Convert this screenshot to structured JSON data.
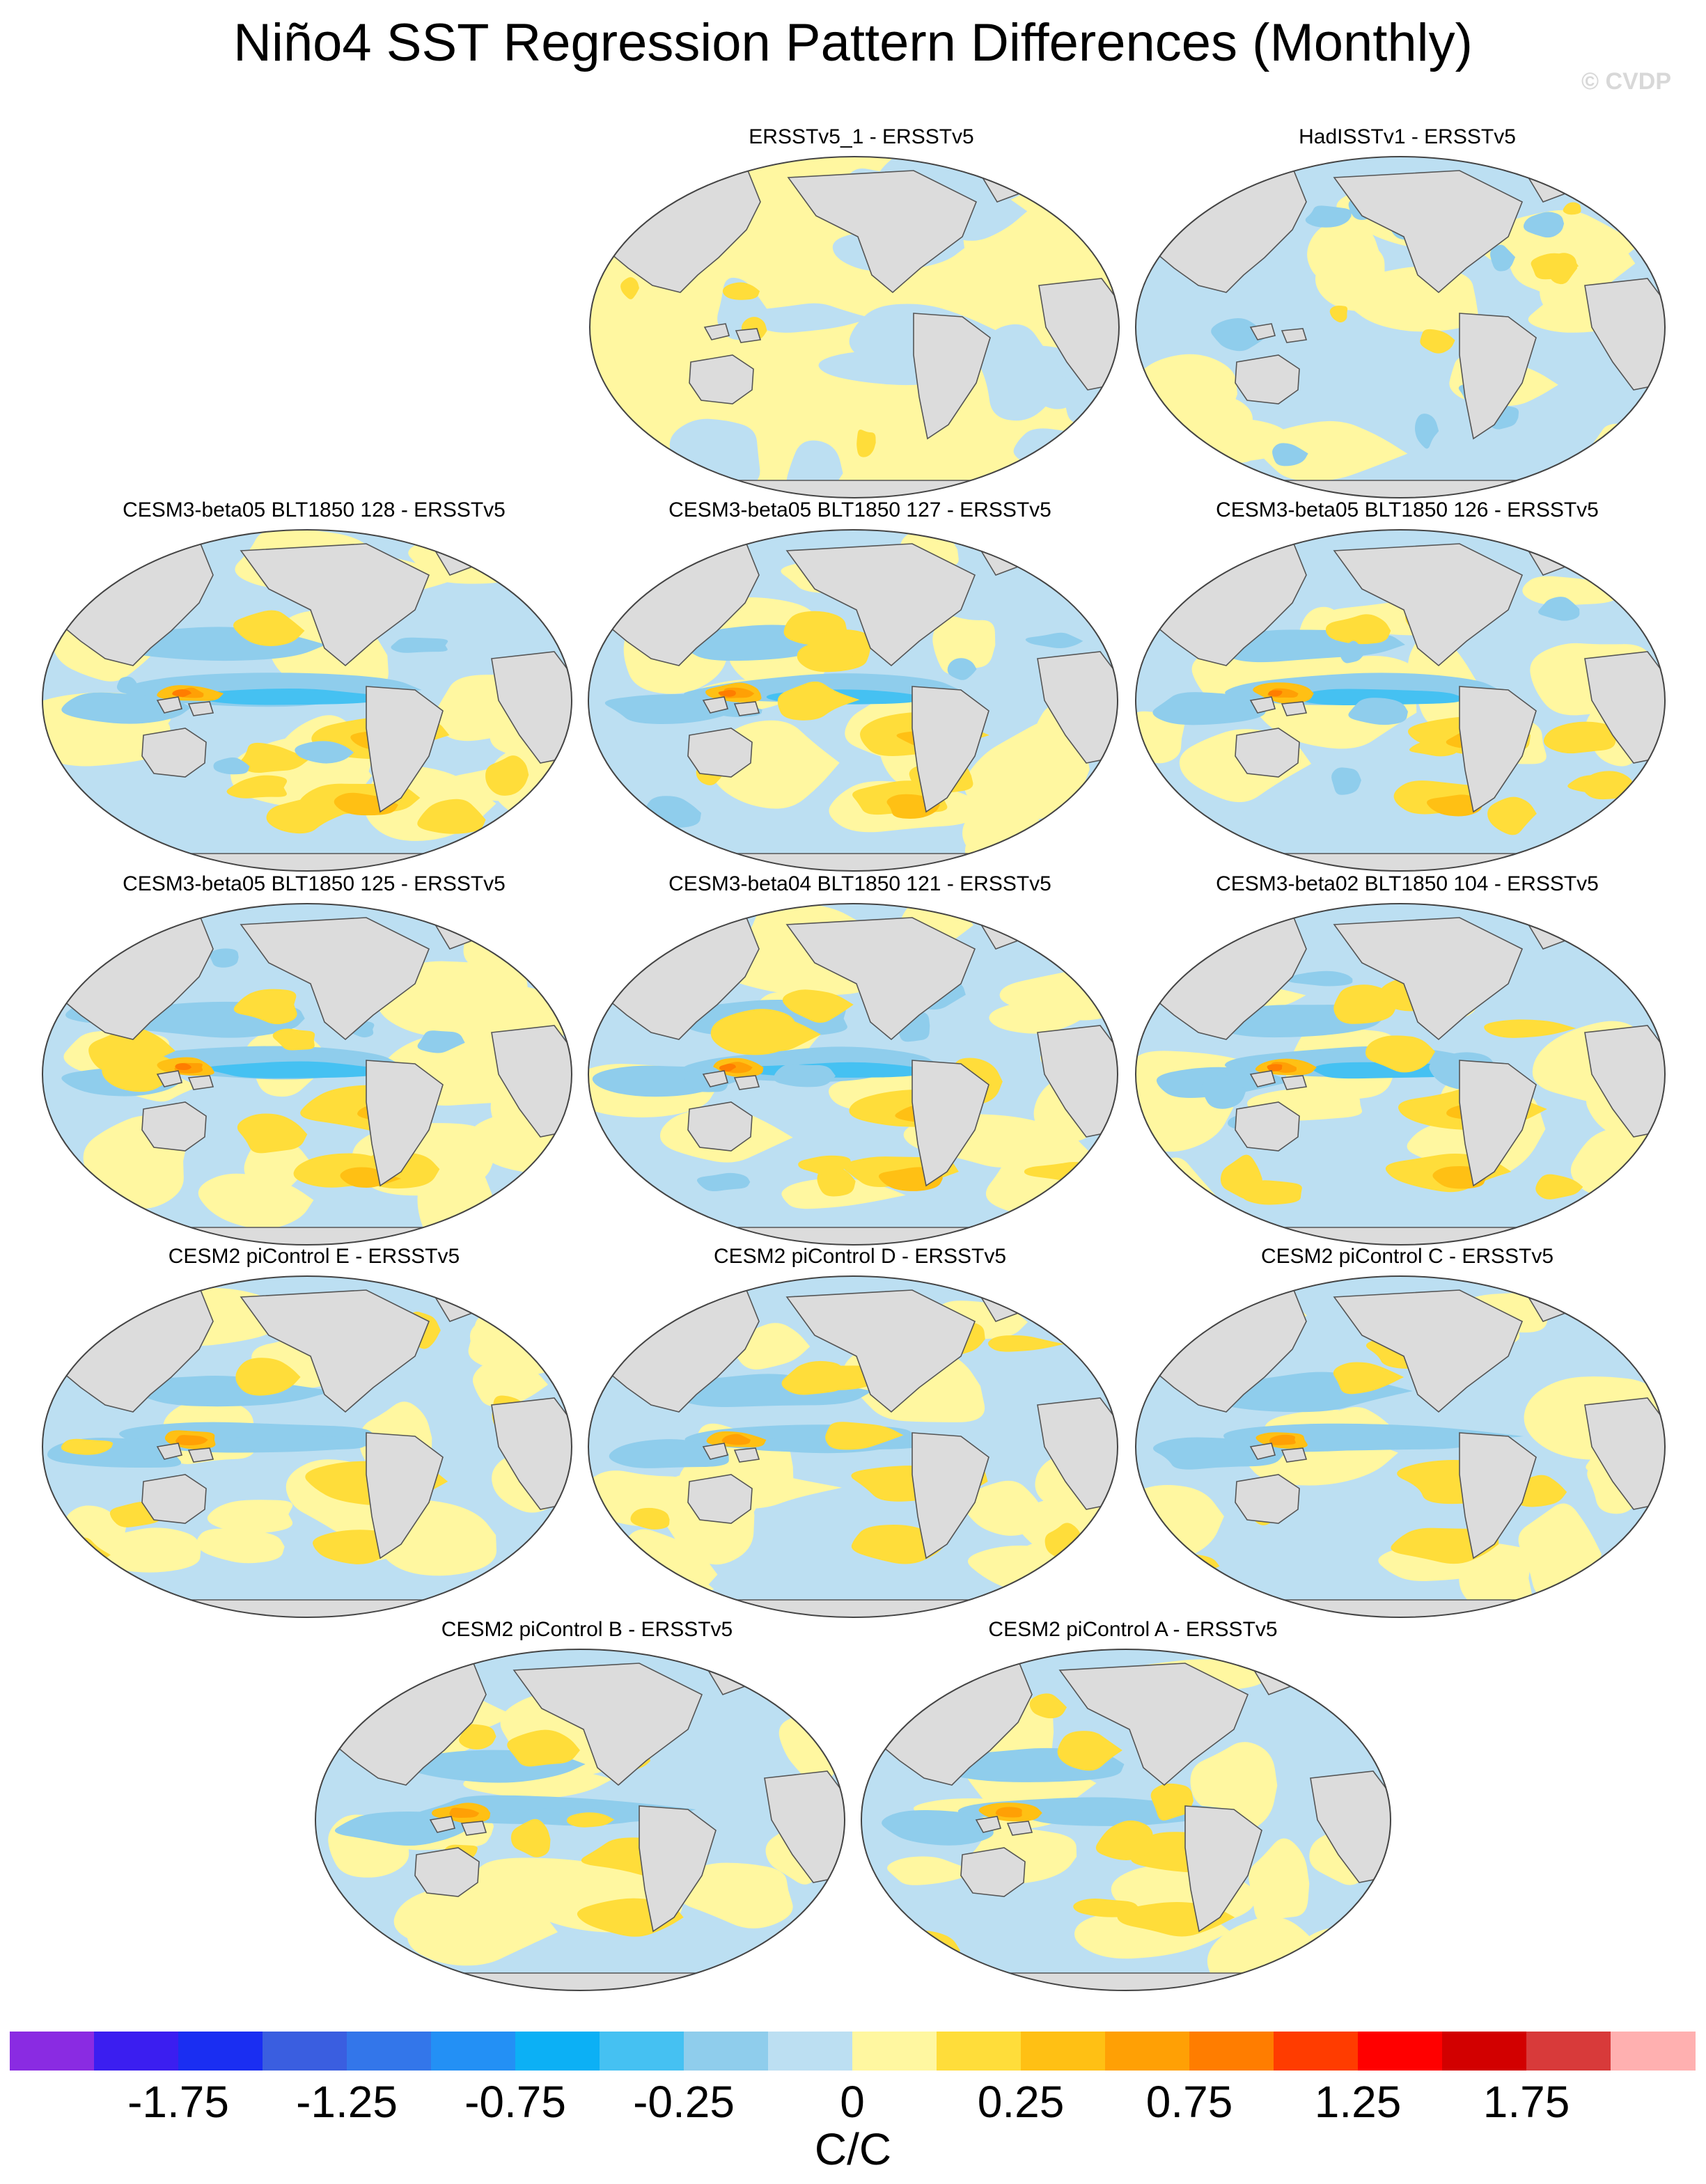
{
  "title": "Niño4 SST Regression Pattern Differences (Monthly)",
  "credit": "© CVDP",
  "panels": [
    {
      "title": "ERSSTv5_1 - ERSSTv5",
      "style": "obs1"
    },
    {
      "title": "HadISSTv1 - ERSSTv5",
      "style": "obs2"
    },
    {
      "title": "CESM3-beta05 BLT1850 128 - ERSSTv5",
      "style": "strong"
    },
    {
      "title": "CESM3-beta05 BLT1850 127 - ERSSTv5",
      "style": "strong"
    },
    {
      "title": "CESM3-beta05 BLT1850 126 - ERSSTv5",
      "style": "strong"
    },
    {
      "title": "CESM3-beta05 BLT1850 125 - ERSSTv5",
      "style": "strong"
    },
    {
      "title": "CESM3-beta04 BLT1850 121 - ERSSTv5",
      "style": "strong"
    },
    {
      "title": "CESM3-beta02 BLT1850 104 - ERSSTv5",
      "style": "strong"
    },
    {
      "title": "CESM2 piControl E - ERSSTv5",
      "style": "medium"
    },
    {
      "title": "CESM2 piControl D - ERSSTv5",
      "style": "medium"
    },
    {
      "title": "CESM2 piControl C - ERSSTv5",
      "style": "medium"
    },
    {
      "title": "CESM2 piControl B - ERSSTv5",
      "style": "medium"
    },
    {
      "title": "CESM2 piControl A - ERSSTv5",
      "style": "medium"
    }
  ],
  "colorbar": {
    "colors": [
      "#8a2be2",
      "#3b1ef0",
      "#1a2ef2",
      "#3a5ee0",
      "#3376ea",
      "#2390f5",
      "#0cb0f5",
      "#45c1f2",
      "#8fcdec",
      "#bcdff2",
      "#fff7a0",
      "#ffdd3a",
      "#ffc014",
      "#ffa005",
      "#ff7d00",
      "#ff3c00",
      "#ff0000",
      "#d20000",
      "#d83a3a",
      "#ffb0b0"
    ],
    "tick_labels": [
      "-1.75",
      "-1.25",
      "-0.75",
      "-0.25",
      "0",
      "0.25",
      "0.75",
      "1.25",
      "1.75"
    ],
    "units": "C/C"
  },
  "colors": {
    "land": "#dcdcdc",
    "coast": "#555555",
    "ocean_neutral": "#fff7a0"
  }
}
